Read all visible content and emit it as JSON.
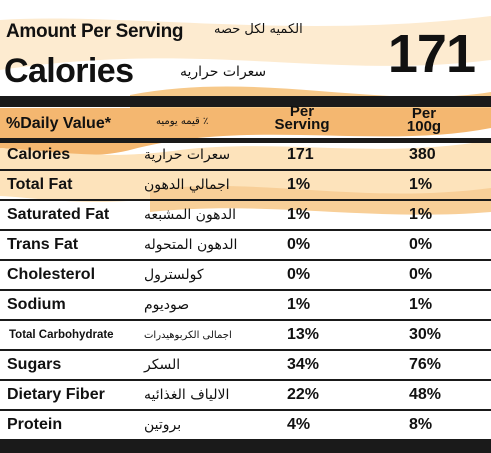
{
  "header": {
    "amount_per_serving": "Amount Per Serving",
    "amount_per_serving_ar": "الكميه لكل حصه",
    "calories_label": "Calories",
    "calories_label_ar": "سعرات حراريه",
    "calories_value": "171"
  },
  "columns": {
    "daily_value": "%Daily Value*",
    "daily_value_ar": "٪ قيمه يوميه",
    "per_serving_line1": "Per",
    "per_serving_line2": "Serving",
    "per_100g_line1": "Per",
    "per_100g_line2": "100g"
  },
  "rows": [
    {
      "name": "Calories",
      "name_ar": "سعرات حرارية",
      "per_serving": "171",
      "per_100g": "380"
    },
    {
      "name": "Total Fat",
      "name_ar": "اجمالي الدهون",
      "per_serving": "1%",
      "per_100g": "1%"
    },
    {
      "name": "Saturated Fat",
      "name_ar": "الدهون المشبعه",
      "per_serving": "1%",
      "per_100g": "1%"
    },
    {
      "name": "Trans Fat",
      "name_ar": "الدهون المتحوله",
      "per_serving": "0%",
      "per_100g": "0%"
    },
    {
      "name": "Cholesterol",
      "name_ar": "كولسترول",
      "per_serving": "0%",
      "per_100g": "0%"
    },
    {
      "name": "Sodium",
      "name_ar": "صوديوم",
      "per_serving": "1%",
      "per_100g": "1%"
    },
    {
      "name": "Total Carbohydrate",
      "name_ar": "اجمالى الكربوهيدرات",
      "per_serving": "13%",
      "per_100g": "30%"
    },
    {
      "name": "Sugars",
      "name_ar": "السكر",
      "per_serving": "34%",
      "per_100g": "76%"
    },
    {
      "name": "Dietary Fiber",
      "name_ar": "الالياف الغذائيه",
      "per_serving": "22%",
      "per_100g": "48%"
    },
    {
      "name": "Protein",
      "name_ar": "بروتين",
      "per_serving": "4%",
      "per_100g": "8%"
    }
  ],
  "colors": {
    "swoosh_light": "#fde3bb",
    "swoosh_dark": "#f4b770",
    "bar": "#1a1a1a"
  }
}
